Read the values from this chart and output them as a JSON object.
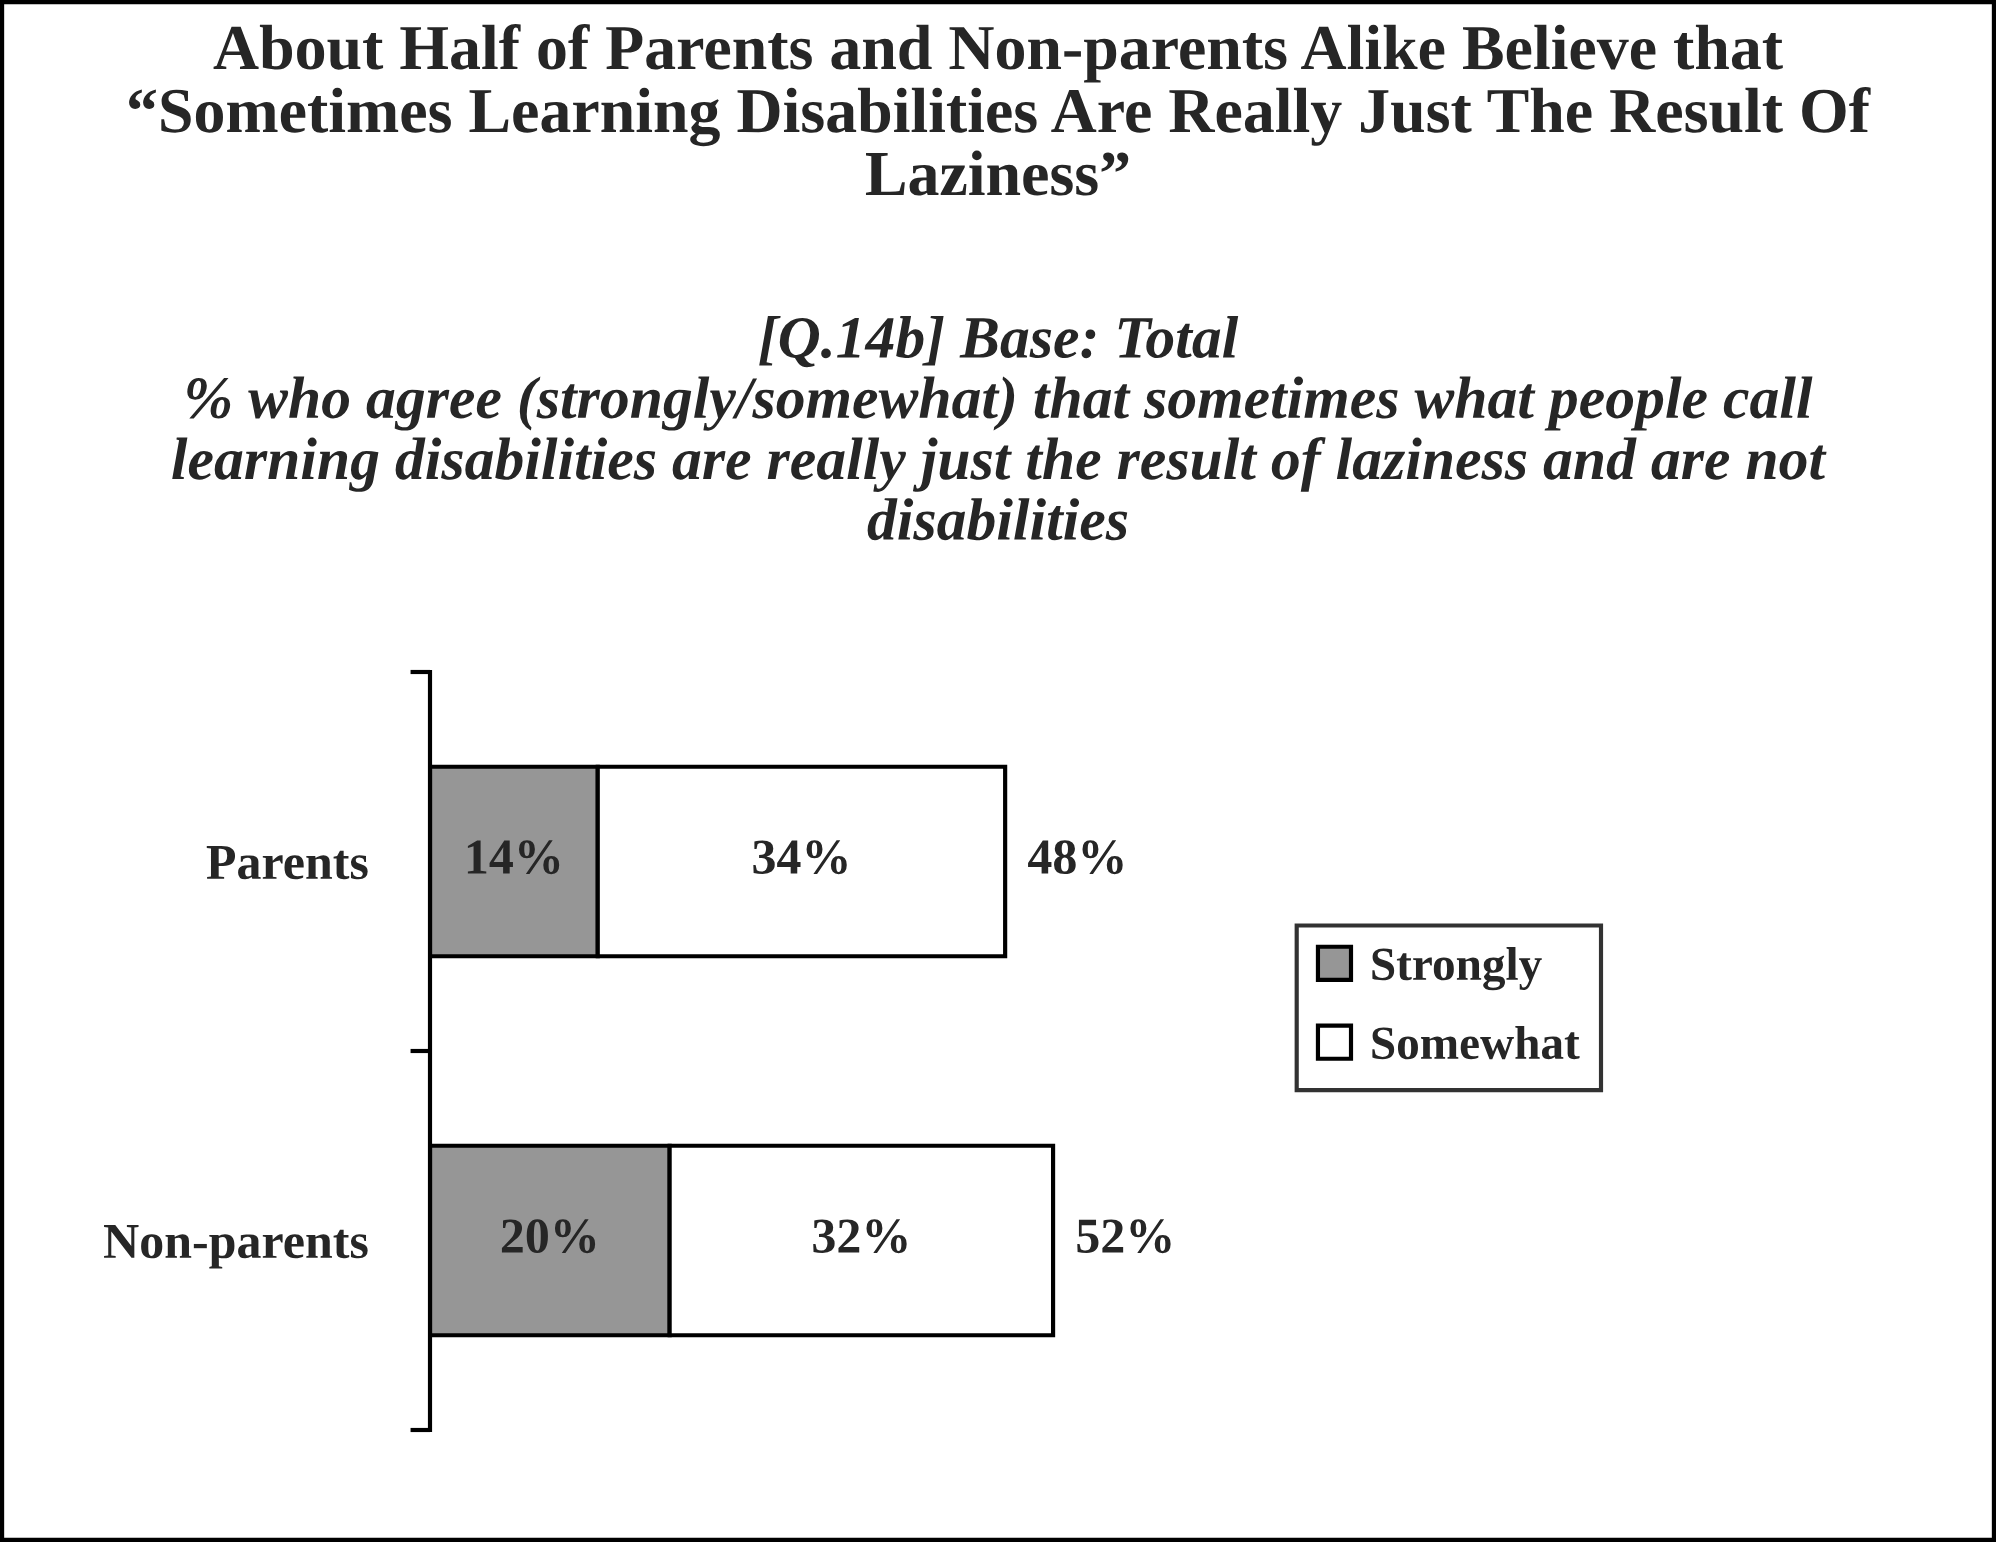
{
  "chart_data": {
    "type": "bar",
    "orientation": "horizontal",
    "stacked": true,
    "title": "About Half of Parents and Non-parents Alike Believe that “Sometimes Learning Disabilities Are Really Just The Result Of Laziness”",
    "subtitle": "[Q.14b] Base: Total\n% who agree (strongly/somewhat) that sometimes what people call learning disabilities are really just the result of laziness and are not disabilities",
    "categories": [
      "Parents",
      "Non-parents"
    ],
    "series": [
      {
        "name": "Strongly",
        "color": "#969696",
        "values": [
          14,
          20
        ],
        "value_labels": [
          "14%",
          "20%"
        ]
      },
      {
        "name": "Somewhat",
        "color": "#ffffff",
        "values": [
          34,
          32
        ],
        "value_labels": [
          "34%",
          "32%"
        ]
      }
    ],
    "totals": [
      "48%",
      "52%"
    ],
    "legend": "right",
    "grid": false
  }
}
